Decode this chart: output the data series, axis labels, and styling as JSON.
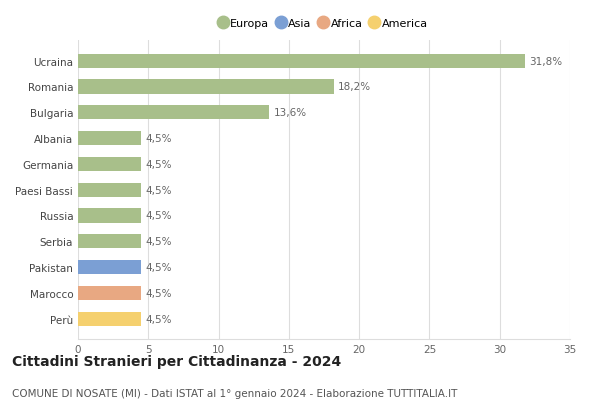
{
  "countries": [
    "Ucraina",
    "Romania",
    "Bulgaria",
    "Albania",
    "Germania",
    "Paesi Bassi",
    "Russia",
    "Serbia",
    "Pakistan",
    "Marocco",
    "Perù"
  ],
  "values": [
    31.8,
    18.2,
    13.6,
    4.5,
    4.5,
    4.5,
    4.5,
    4.5,
    4.5,
    4.5,
    4.5
  ],
  "labels": [
    "31,8%",
    "18,2%",
    "13,6%",
    "4,5%",
    "4,5%",
    "4,5%",
    "4,5%",
    "4,5%",
    "4,5%",
    "4,5%",
    "4,5%"
  ],
  "colors": [
    "#a8bf8a",
    "#a8bf8a",
    "#a8bf8a",
    "#a8bf8a",
    "#a8bf8a",
    "#a8bf8a",
    "#a8bf8a",
    "#a8bf8a",
    "#7b9fd4",
    "#e8a882",
    "#f5d06e"
  ],
  "legend": [
    {
      "label": "Europa",
      "color": "#a8bf8a"
    },
    {
      "label": "Asia",
      "color": "#7b9fd4"
    },
    {
      "label": "Africa",
      "color": "#e8a882"
    },
    {
      "label": "America",
      "color": "#f5d06e"
    }
  ],
  "xlim": [
    0,
    35
  ],
  "xticks": [
    0,
    5,
    10,
    15,
    20,
    25,
    30,
    35
  ],
  "title": "Cittadini Stranieri per Cittadinanza - 2024",
  "subtitle": "COMUNE DI NOSATE (MI) - Dati ISTAT al 1° gennaio 2024 - Elaborazione TUTTITALIA.IT",
  "title_fontsize": 10,
  "subtitle_fontsize": 7.5,
  "label_fontsize": 7.5,
  "tick_fontsize": 7.5,
  "legend_fontsize": 8,
  "bar_height": 0.55,
  "grid_color": "#dddddd",
  "bg_color": "#ffffff"
}
